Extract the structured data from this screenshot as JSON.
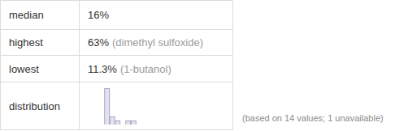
{
  "table": {
    "rows": [
      {
        "label": "median",
        "value": "16%"
      },
      {
        "label": "highest",
        "value": "63%",
        "note": "(dimethyl sulfoxide)"
      },
      {
        "label": "lowest",
        "value": "11.3%",
        "note": "(1-butanol)"
      },
      {
        "label": "distribution"
      }
    ]
  },
  "note": "(based on 14 values; 1 unavailable)",
  "chart_data": {
    "type": "histogram",
    "bins": [
      10,
      20,
      30,
      40,
      50,
      60,
      70
    ],
    "values": [
      9,
      2,
      1,
      0,
      1,
      1
    ],
    "color": "#e1e1f0",
    "xlim": [
      10,
      70
    ],
    "ylim": [
      0,
      9
    ],
    "grid": false,
    "tick_labels": false
  }
}
